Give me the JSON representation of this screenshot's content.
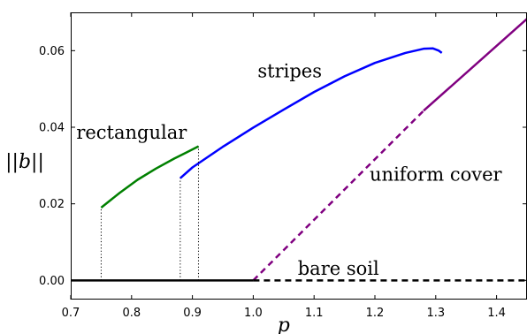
{
  "chart_data": {
    "type": "line",
    "xlabel": "p",
    "ylabel": "||b||",
    "xlim": [
      0.7,
      1.45
    ],
    "ylim": [
      -0.005,
      0.07
    ],
    "x_ticks": [
      "0.7",
      "0.8",
      "0.9",
      "1.0",
      "1.1",
      "1.2",
      "1.3",
      "1.4"
    ],
    "y_ticks": [
      "0.00",
      "0.02",
      "0.04",
      "0.06"
    ],
    "grid": false,
    "series": [
      {
        "name": "rectangular",
        "color": "#008000",
        "style": "solid",
        "points": [
          [
            0.75,
            0.019
          ],
          [
            0.78,
            0.0228
          ],
          [
            0.81,
            0.0263
          ],
          [
            0.84,
            0.0292
          ],
          [
            0.87,
            0.0318
          ],
          [
            0.89,
            0.0334
          ],
          [
            0.91,
            0.035
          ]
        ]
      },
      {
        "name": "stripes",
        "color": "#0000ff",
        "style": "solid",
        "points": [
          [
            0.88,
            0.0267
          ],
          [
            0.9,
            0.0295
          ],
          [
            0.95,
            0.0349
          ],
          [
            1.0,
            0.0399
          ],
          [
            1.05,
            0.0446
          ],
          [
            1.1,
            0.0492
          ],
          [
            1.15,
            0.0533
          ],
          [
            1.2,
            0.0568
          ],
          [
            1.25,
            0.0594
          ],
          [
            1.28,
            0.0605
          ],
          [
            1.295,
            0.0606
          ],
          [
            1.305,
            0.06
          ],
          [
            1.31,
            0.0594
          ]
        ]
      },
      {
        "name": "uniform cover (unstable)",
        "color": "#800080",
        "style": "dashed",
        "points": [
          [
            1.0,
            0.0
          ],
          [
            1.28,
            0.0443
          ]
        ]
      },
      {
        "name": "uniform cover",
        "color": "#800080",
        "style": "solid",
        "points": [
          [
            1.28,
            0.0443
          ],
          [
            1.45,
            0.0683
          ]
        ]
      },
      {
        "name": "bare soil (stable)",
        "color": "#000000",
        "style": "solid",
        "points": [
          [
            0.7,
            0.0
          ],
          [
            1.0,
            0.0
          ]
        ]
      },
      {
        "name": "bare soil (unstable)",
        "color": "#000000",
        "style": "dashed",
        "points": [
          [
            1.0,
            0.0
          ],
          [
            1.45,
            0.0
          ]
        ]
      }
    ],
    "dotted_markers": [
      {
        "x": 0.75,
        "y": 0.019
      },
      {
        "x": 0.88,
        "y": 0.0267
      },
      {
        "x": 0.91,
        "y": 0.035
      }
    ],
    "annotations": [
      {
        "text": "rectangular",
        "x": 0.8,
        "y": 0.037
      },
      {
        "text": "stripes",
        "x": 1.06,
        "y": 0.053
      },
      {
        "text": "uniform cover",
        "x": 1.3,
        "y": 0.026
      },
      {
        "text": "bare soil",
        "x": 1.14,
        "y": 0.0015
      }
    ]
  }
}
